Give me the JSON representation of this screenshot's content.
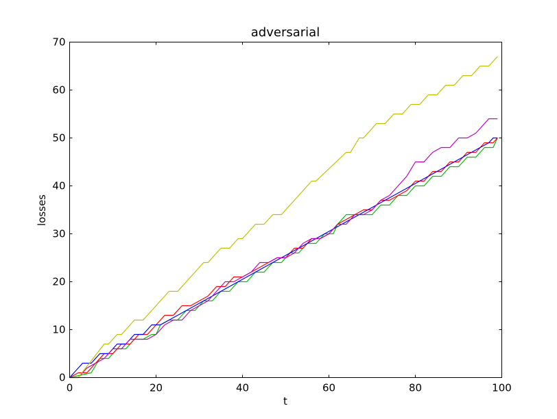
{
  "chart_data": {
    "type": "line",
    "title": "adversarial",
    "xlabel": "t",
    "ylabel": "losses",
    "xlim": [
      0,
      100
    ],
    "ylim": [
      0,
      70
    ],
    "xticks": [
      "0",
      "20",
      "40",
      "60",
      "80",
      "100"
    ],
    "yticks": [
      "0",
      "10",
      "20",
      "30",
      "40",
      "50",
      "60",
      "70"
    ],
    "grid": false,
    "legend": "none",
    "series": [
      {
        "color": "#00bf00",
        "x": [
          0,
          5,
          7,
          9,
          11,
          13,
          15,
          17,
          19,
          20,
          21,
          23,
          25,
          27,
          29,
          31,
          33,
          35,
          37,
          39,
          41,
          43,
          45,
          47,
          49,
          51,
          53,
          55,
          57,
          59,
          61,
          62,
          63,
          64,
          66,
          68,
          70,
          72,
          74,
          76,
          78,
          80,
          82,
          84,
          86,
          88,
          90,
          92,
          94,
          96,
          98,
          99
        ],
        "y": [
          0,
          1,
          4,
          4,
          6,
          6,
          8,
          8,
          9,
          9,
          11,
          12,
          12,
          14,
          14,
          16,
          16,
          18,
          18,
          20,
          20,
          22,
          22,
          24,
          24,
          26,
          26,
          28,
          28,
          30,
          30,
          32,
          33,
          34,
          34,
          34,
          34,
          36,
          36,
          38,
          38,
          40,
          40,
          42,
          42,
          44,
          44,
          46,
          46,
          48,
          48,
          50
        ]
      },
      {
        "color": "#ff0000",
        "x": [
          0,
          2,
          4,
          6,
          8,
          10,
          12,
          14,
          16,
          18,
          20,
          22,
          24,
          26,
          28,
          30,
          32,
          34,
          36,
          38,
          40,
          42,
          44,
          46,
          48,
          50,
          52,
          54,
          56,
          58,
          60,
          62,
          64,
          66,
          68,
          70,
          72,
          74,
          76,
          78,
          80,
          82,
          84,
          86,
          88,
          90,
          92,
          94,
          96,
          98,
          99
        ],
        "y": [
          0,
          1,
          1,
          3,
          5,
          5,
          7,
          7,
          9,
          9,
          11,
          13,
          13,
          15,
          15,
          16,
          17,
          19,
          19,
          21,
          21,
          22,
          23,
          24,
          25,
          25,
          27,
          27,
          29,
          29,
          30,
          32,
          33,
          34,
          35,
          35,
          37,
          37,
          38,
          39,
          41,
          41,
          43,
          43,
          45,
          45,
          47,
          47,
          49,
          49,
          50
        ]
      },
      {
        "color": "#0000ff",
        "x": [
          0,
          1,
          3,
          5,
          7,
          9,
          11,
          13,
          15,
          17,
          19,
          21,
          23,
          25,
          27,
          29,
          31,
          33,
          35,
          37,
          39,
          41,
          43,
          45,
          47,
          49,
          51,
          53,
          55,
          57,
          59,
          61,
          63,
          65,
          67,
          69,
          71,
          73,
          75,
          77,
          79,
          81,
          83,
          85,
          87,
          89,
          91,
          93,
          95,
          97,
          98,
          99
        ],
        "y": [
          0,
          1,
          3,
          3,
          5,
          5,
          7,
          7,
          9,
          9,
          11,
          11,
          12,
          13,
          14,
          15,
          16,
          17,
          18,
          19,
          20,
          21,
          22,
          23,
          24,
          25,
          26,
          27,
          28,
          29,
          30,
          31,
          32,
          33,
          34,
          35,
          36,
          37,
          38,
          39,
          40,
          41,
          42,
          43,
          44,
          45,
          46,
          47,
          48,
          49,
          50,
          50
        ]
      },
      {
        "color": "#bf00bf",
        "x": [
          0,
          2,
          4,
          6,
          8,
          10,
          12,
          14,
          16,
          18,
          20,
          22,
          24,
          26,
          28,
          30,
          32,
          34,
          36,
          38,
          40,
          42,
          44,
          46,
          48,
          50,
          52,
          54,
          56,
          58,
          60,
          62,
          64,
          66,
          68,
          70,
          72,
          74,
          76,
          78,
          80,
          82,
          84,
          86,
          88,
          90,
          92,
          94,
          96,
          97,
          99
        ],
        "y": [
          0,
          0,
          2,
          3,
          4,
          6,
          6,
          8,
          8,
          8,
          9,
          11,
          12,
          12,
          14,
          15,
          16,
          18,
          20,
          20,
          21,
          22,
          24,
          24,
          25,
          25,
          26,
          28,
          29,
          29,
          30,
          32,
          32,
          34,
          34,
          35,
          37,
          38,
          40,
          42,
          45,
          45,
          47,
          48,
          48,
          50,
          50,
          51,
          53,
          54,
          54
        ]
      },
      {
        "color": "#bfbf00",
        "x": [
          0,
          2,
          8,
          9,
          11,
          12,
          15,
          17,
          23,
          25,
          31,
          32,
          35,
          37,
          39,
          40,
          43,
          45,
          47,
          49,
          56,
          57,
          64,
          65,
          67,
          68,
          71,
          73,
          75,
          77,
          79,
          81,
          83,
          85,
          87,
          89,
          91,
          93,
          95,
          97,
          99
        ],
        "y": [
          0,
          0,
          7,
          7,
          9,
          9,
          12,
          12,
          18,
          18,
          24,
          24,
          27,
          27,
          29,
          29,
          32,
          32,
          34,
          34,
          41,
          41,
          47,
          47,
          50,
          50,
          53,
          53,
          55,
          55,
          57,
          57,
          59,
          59,
          61,
          61,
          63,
          63,
          65,
          65,
          67
        ]
      }
    ]
  }
}
